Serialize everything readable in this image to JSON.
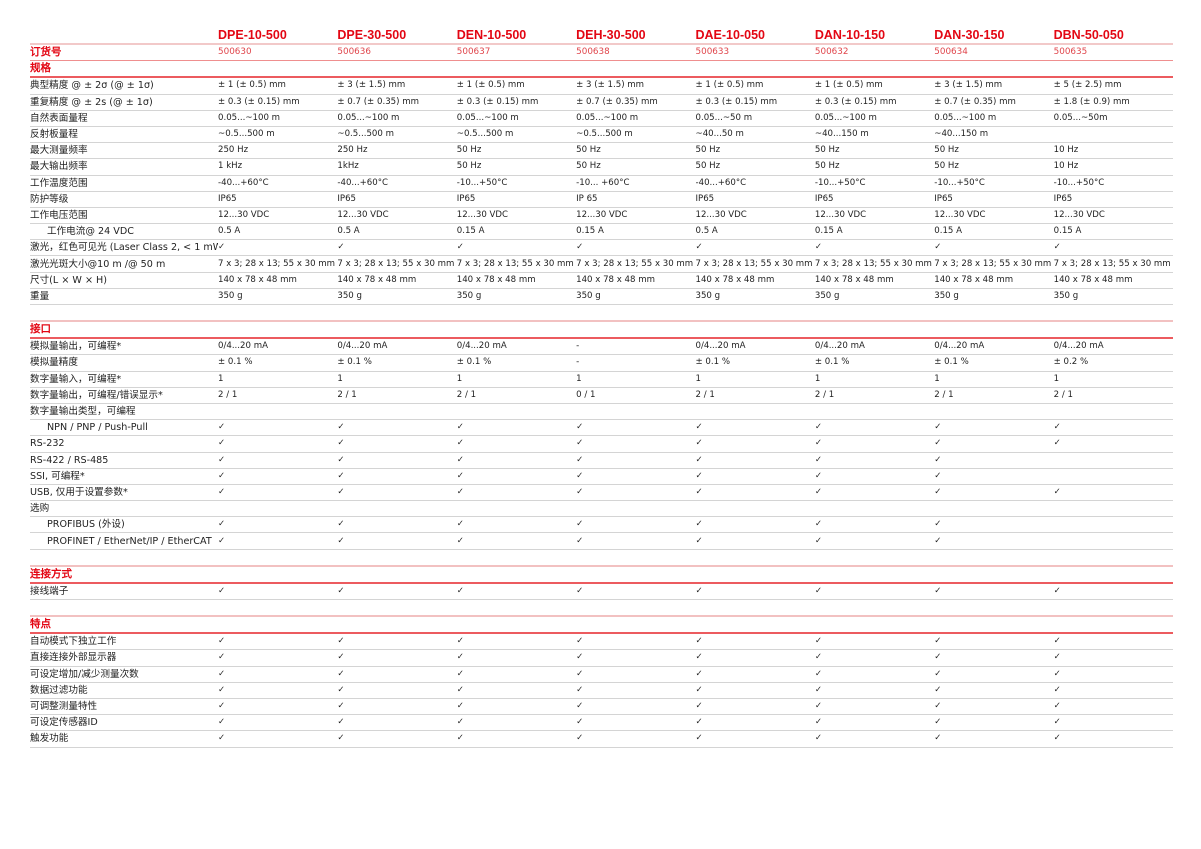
{
  "models": [
    "DPE-10-500",
    "DPE-30-500",
    "DEN-10-500",
    "DEH-30-500",
    "DAE-10-050",
    "DAN-10-150",
    "DAN-30-150",
    "DBN-50-050"
  ],
  "order_label": "订货号",
  "order_numbers": [
    "500630",
    "500636",
    "500637",
    "500638",
    "500633",
    "500632",
    "500634",
    "500635"
  ],
  "colors": {
    "accent": "#e30613"
  },
  "sections": [
    {
      "title": "规格",
      "rows": [
        {
          "label": "典型精度 @ ± 2σ (@ ± 1σ)",
          "values": [
            "± 1 (± 0.5) mm",
            "± 3 (± 1.5) mm",
            "± 1 (± 0.5) mm",
            "± 3 (± 1.5) mm",
            "± 1 (± 0.5) mm",
            "± 1 (± 0.5) mm",
            "± 3 (± 1.5) mm",
            "± 5 (± 2.5) mm"
          ]
        },
        {
          "label": "重复精度 @ ± 2s (@ ± 1σ)",
          "values": [
            "± 0.3 (± 0.15) mm",
            "± 0.7 (± 0.35) mm",
            "± 0.3 (± 0.15) mm",
            "± 0.7 (± 0.35) mm",
            "± 0.3 (± 0.15) mm",
            "± 0.3 (± 0.15) mm",
            "± 0.7 (± 0.35) mm",
            "± 1.8 (± 0.9) mm"
          ]
        },
        {
          "label": "自然表面量程",
          "values": [
            "0.05...~100 m",
            "0.05...~100 m",
            "0.05...~100 m",
            "0.05...~100 m",
            "0.05...~50 m",
            "0.05...~100 m",
            "0.05...~100 m",
            "0.05...~50m"
          ]
        },
        {
          "label": "反射板量程",
          "values": [
            " ~0.5...500 m",
            " ~0.5...500 m",
            " ~0.5...500 m",
            " ~0.5...500 m",
            "~40...50 m",
            "~40...150 m",
            "~40...150 m",
            ""
          ]
        },
        {
          "label": "最大测量频率",
          "values": [
            "250 Hz",
            "250 Hz",
            "50 Hz",
            "50 Hz",
            "50 Hz",
            "50 Hz",
            "50 Hz",
            "10 Hz"
          ]
        },
        {
          "label": "最大输出频率",
          "values": [
            "1 kHz",
            "1kHz",
            "50 Hz",
            "50 Hz",
            "50 Hz",
            "50 Hz",
            "50 Hz",
            "10 Hz"
          ]
        },
        {
          "label": "工作温度范围",
          "values": [
            "-40...+60°C",
            "-40...+60°C",
            "-10...+50°C",
            "-10... +60°C",
            "-40...+60°C",
            "-10...+50°C",
            "-10...+50°C",
            "-10...+50°C"
          ]
        },
        {
          "label": "防护等级",
          "values": [
            "IP65",
            "IP65",
            "IP65",
            "IP 65",
            "IP65",
            "IP65",
            "IP65",
            "IP65"
          ]
        },
        {
          "label": "工作电压范围",
          "values": [
            "12...30 VDC",
            "12...30 VDC",
            "12...30 VDC",
            "12...30 VDC",
            "12...30 VDC",
            "12...30 VDC",
            "12...30 VDC",
            "12...30 VDC"
          ]
        },
        {
          "label": "工作电流@ 24 VDC",
          "sub": true,
          "values": [
            "0.5 A",
            "0.5 A",
            "0.15 A",
            "0.15 A",
            "0.5 A",
            "0.15 A",
            "0.15 A",
            "0.15 A"
          ]
        },
        {
          "label": "激光，红色可见光 (Laser Class 2, < 1 mW)",
          "values": [
            "✓",
            "✓",
            "✓",
            "✓",
            "✓",
            "✓",
            "✓",
            "✓"
          ]
        },
        {
          "label": "激光光斑大小@10 m /@ 50 m",
          "values": [
            "7 x 3; 28 x 13; 55 x 30 mm",
            "7 x 3; 28 x 13; 55 x 30 mm",
            "7 x 3; 28 x 13; 55 x 30 mm",
            "7 x 3; 28 x 13; 55 x 30 mm",
            "7 x 3; 28 x 13; 55 x 30 mm",
            "7 x 3; 28 x 13; 55 x 30 mm",
            "7 x 3; 28 x 13; 55 x 30 mm",
            "7 x 3; 28 x 13; 55 x 30 mm"
          ]
        },
        {
          "label": "尺寸(L × W × H)",
          "values": [
            "140 x 78 x 48 mm",
            "140 x 78 x 48 mm",
            "140 x 78 x 48 mm",
            "140 x 78 x 48 mm",
            "140 x 78 x 48 mm",
            "140 x 78 x 48 mm",
            "140 x 78 x 48 mm",
            "140 x 78 x 48 mm"
          ]
        },
        {
          "label": "重量",
          "values": [
            "350 g",
            "350 g",
            "350 g",
            "350 g",
            "350 g",
            "350 g",
            "350 g",
            "350 g"
          ]
        }
      ]
    },
    {
      "title": "接口",
      "rows": [
        {
          "label": "模拟量输出，可编程*",
          "values": [
            "0/4...20 mA",
            "0/4...20 mA",
            "0/4...20 mA",
            "-",
            "0/4...20 mA",
            "0/4...20 mA",
            "0/4...20 mA",
            "0/4...20 mA"
          ]
        },
        {
          "label": "模拟量精度",
          "values": [
            "± 0.1 %",
            "± 0.1 %",
            "± 0.1 %",
            "-",
            "± 0.1 %",
            "± 0.1 %",
            "± 0.1 %",
            "± 0.2 %"
          ]
        },
        {
          "label": "数字量输入，可编程*",
          "values": [
            "1",
            "1",
            "1",
            "1",
            "1",
            "1",
            "1",
            "1"
          ]
        },
        {
          "label": "数字量输出，可编程/错误显示*",
          "values": [
            "2 / 1",
            "2 / 1",
            "2 / 1",
            "0 / 1",
            "2 / 1",
            "2 / 1",
            "2 / 1",
            "2 / 1"
          ]
        },
        {
          "label": "数字量输出类型，可编程",
          "values": [
            "",
            "",
            "",
            "",
            "",
            "",
            "",
            ""
          ]
        },
        {
          "label": "NPN / PNP / Push-Pull",
          "sub": true,
          "values": [
            "✓",
            "✓",
            "✓",
            "✓",
            "✓",
            "✓",
            "✓",
            "✓"
          ]
        },
        {
          "label": "RS-232",
          "values": [
            "✓",
            "✓",
            "✓",
            "✓",
            "✓",
            "✓",
            "✓",
            "✓"
          ]
        },
        {
          "label": "RS-422 / RS-485",
          "values": [
            "✓",
            "✓",
            "✓",
            "✓",
            "✓",
            "✓",
            "✓",
            ""
          ]
        },
        {
          "label": "SSI, 可编程*",
          "values": [
            "✓",
            "✓",
            "✓",
            "✓",
            "✓",
            "✓",
            "✓",
            ""
          ]
        },
        {
          "label": "USB, 仅用于设置参数*",
          "values": [
            "✓",
            "✓",
            "✓",
            "✓",
            "✓",
            "✓",
            "✓",
            "✓"
          ]
        },
        {
          "label": "选购",
          "values": [
            "",
            "",
            "",
            "",
            "",
            "",
            "",
            ""
          ]
        },
        {
          "label": "PROFIBUS (外设)",
          "sub": true,
          "values": [
            "✓",
            "✓",
            "✓",
            "✓",
            "✓",
            "✓",
            "✓",
            ""
          ]
        },
        {
          "label": "PROFINET / EtherNet/IP / EtherCAT",
          "sub": true,
          "values": [
            "✓",
            "✓",
            "✓",
            "✓",
            "✓",
            "✓",
            "✓",
            ""
          ]
        }
      ]
    },
    {
      "title": "连接方式",
      "rows": [
        {
          "label": "接线端子",
          "values": [
            "✓",
            "✓",
            "✓",
            "✓",
            "✓",
            "✓",
            "✓",
            "✓"
          ]
        }
      ]
    },
    {
      "title": "特点",
      "rows": [
        {
          "label": "自动模式下独立工作",
          "values": [
            "✓",
            "✓",
            "✓",
            "✓",
            "✓",
            "✓",
            "✓",
            "✓"
          ]
        },
        {
          "label": "直接连接外部显示器",
          "values": [
            "✓",
            "✓",
            "✓",
            "✓",
            "✓",
            "✓",
            "✓",
            "✓"
          ]
        },
        {
          "label": "可设定增加/减少测量次数",
          "values": [
            "✓",
            "✓",
            "✓",
            "✓",
            "✓",
            "✓",
            "✓",
            "✓"
          ]
        },
        {
          "label": "数据过滤功能",
          "values": [
            "✓",
            "✓",
            "✓",
            "✓",
            "✓",
            "✓",
            "✓",
            "✓"
          ]
        },
        {
          "label": "可调整测量特性",
          "values": [
            "✓",
            "✓",
            "✓",
            "✓",
            "✓",
            "✓",
            "✓",
            "✓"
          ]
        },
        {
          "label": "可设定传感器ID",
          "values": [
            "✓",
            "✓",
            "✓",
            "✓",
            "✓",
            "✓",
            "✓",
            "✓"
          ]
        },
        {
          "label": "触发功能",
          "values": [
            "✓",
            "✓",
            "✓",
            "✓",
            "✓",
            "✓",
            "✓",
            "✓"
          ]
        }
      ]
    }
  ]
}
